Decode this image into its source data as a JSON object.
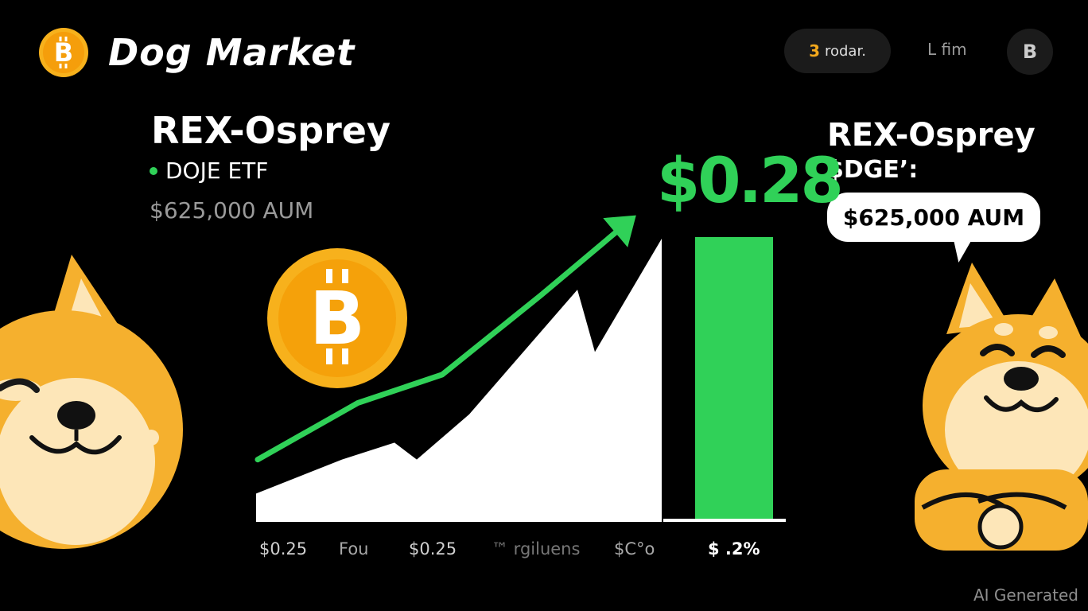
{
  "header": {
    "brand_name": "Dog Market",
    "brand_icon": "bitcoin-logo-icon",
    "pill_number": "3",
    "pill_label": "rodar.",
    "link_label": "L fim",
    "avatar_letter": "B"
  },
  "left_panel": {
    "title": "REX-Osprey",
    "subtitle": "DOJE ETF",
    "aum": "$625,000 AUM"
  },
  "right_panel": {
    "title": "REX-Osprey",
    "subtitle": "$DGE’:",
    "aum_bubble": "$625,000  AUM"
  },
  "price": {
    "value": "$0.28",
    "color": "#30d158"
  },
  "chart_data": {
    "type": "area",
    "x_labels": [
      "$0.25",
      "Fou",
      "$0.25",
      "™ rgiluens",
      "$C°o",
      "$ .2%"
    ],
    "area_values": [
      0.1,
      0.22,
      0.28,
      0.22,
      0.38,
      0.82,
      0.6,
      1.0
    ],
    "trend_values": [
      0.22,
      0.42,
      0.52,
      0.8,
      1.05
    ],
    "bar_value": 1.0,
    "colors": {
      "area": "#ffffff",
      "trend": "#30d158",
      "bar": "#30d158",
      "baseline": "#ffffff"
    }
  },
  "decor": {
    "coin_icon": "bitcoin-coin-icon",
    "dog_left": "shiba-dog-left-illustration",
    "dog_right": "shiba-dog-right-illustration",
    "coin_color": "#f7a81b",
    "dog_color": "#f5b02e"
  },
  "watermark": "AI Generated"
}
